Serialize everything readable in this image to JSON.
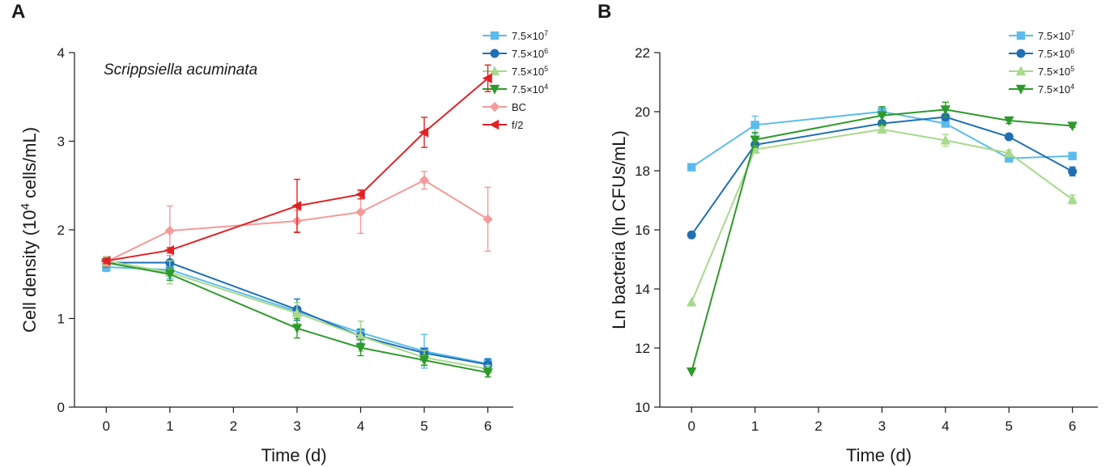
{
  "chart_data": [
    {
      "panel": "A",
      "type": "line",
      "annotation": "Scrippsiella acuminata",
      "xlabel": "Time (d)",
      "ylabel": "Cell density (10⁴ cells/mL)",
      "xlim": [
        -0.5,
        6.4
      ],
      "ylim": [
        0,
        4
      ],
      "xticks": [
        0,
        1,
        2,
        3,
        4,
        5,
        6
      ],
      "yticks": [
        0,
        1,
        2,
        3,
        4
      ],
      "legend_position": "top-right",
      "x": [
        0,
        1,
        3,
        4,
        5,
        6
      ],
      "series": [
        {
          "name": "7.5×10⁷",
          "color": "#5bbcec",
          "marker": "square",
          "values": [
            1.58,
            1.55,
            1.08,
            0.84,
            0.63,
            0.49
          ],
          "errors": [
            0.05,
            0.1,
            0.1,
            0.13,
            0.19,
            0.06
          ]
        },
        {
          "name": "7.5×10⁶",
          "color": "#1f6fb5",
          "marker": "circle",
          "values": [
            1.63,
            1.63,
            1.1,
            0.8,
            0.61,
            0.48
          ],
          "errors": [
            0.05,
            0.08,
            0.12,
            0.08,
            0.05,
            0.06
          ]
        },
        {
          "name": "7.5×10⁵",
          "color": "#a8d98c",
          "marker": "triangle-up",
          "values": [
            1.65,
            1.52,
            1.06,
            0.8,
            0.56,
            0.43
          ],
          "errors": [
            0.05,
            0.13,
            0.12,
            0.17,
            0.08,
            0.04
          ]
        },
        {
          "name": "7.5×10⁴",
          "color": "#2e9a2b",
          "marker": "triangle-down",
          "values": [
            1.63,
            1.5,
            0.89,
            0.67,
            0.53,
            0.39
          ],
          "errors": [
            0.05,
            0.07,
            0.11,
            0.09,
            0.06,
            0.05
          ]
        },
        {
          "name": "BC",
          "color": "#f59a9a",
          "marker": "diamond",
          "values": [
            1.64,
            1.99,
            2.1,
            2.2,
            2.56,
            2.12
          ],
          "errors": [
            0.05,
            0.28,
            0.12,
            0.24,
            0.1,
            0.36
          ]
        },
        {
          "name": "f/2",
          "color": "#e02226",
          "marker": "triangle-left",
          "values": [
            1.65,
            1.77,
            2.27,
            2.4,
            3.1,
            3.71
          ],
          "errors": [
            0.03,
            0.03,
            0.3,
            0.05,
            0.17,
            0.15
          ]
        }
      ]
    },
    {
      "panel": "B",
      "type": "line",
      "xlabel": "Time (d)",
      "ylabel": "Ln bacteria (ln CFUs/mL)",
      "xlim": [
        -0.5,
        6.4
      ],
      "ylim": [
        10,
        22
      ],
      "xticks": [
        0,
        1,
        2,
        3,
        4,
        5,
        6
      ],
      "yticks": [
        10,
        12,
        14,
        16,
        18,
        20,
        22
      ],
      "legend_position": "top-right",
      "x": [
        0,
        1,
        3,
        4,
        5,
        6
      ],
      "series": [
        {
          "name": "7.5×10⁷",
          "color": "#5bbcec",
          "marker": "square",
          "values": [
            18.12,
            19.55,
            20.0,
            19.6,
            18.42,
            18.5
          ],
          "errors": [
            0,
            0.3,
            0.15,
            0.1,
            0.1,
            0.05
          ]
        },
        {
          "name": "7.5×10⁶",
          "color": "#1f6fb5",
          "marker": "circle",
          "values": [
            15.83,
            18.88,
            19.6,
            19.82,
            19.15,
            17.98
          ],
          "errors": [
            0,
            0.1,
            0.1,
            0.1,
            0.05,
            0.15
          ]
        },
        {
          "name": "7.5×10⁵",
          "color": "#a8d98c",
          "marker": "triangle-up",
          "values": [
            13.55,
            18.72,
            19.4,
            19.03,
            18.6,
            17.03
          ],
          "errors": [
            0,
            0.1,
            0.1,
            0.2,
            0.1,
            0.15
          ]
        },
        {
          "name": "7.5×10⁴",
          "color": "#2e9a2b",
          "marker": "triangle-down",
          "values": [
            11.2,
            19.05,
            19.87,
            20.07,
            19.7,
            19.52
          ],
          "errors": [
            0,
            0.25,
            0.3,
            0.25,
            0.1,
            0.05
          ]
        }
      ]
    }
  ],
  "panels": {
    "a_label": "A",
    "b_label": "B"
  }
}
